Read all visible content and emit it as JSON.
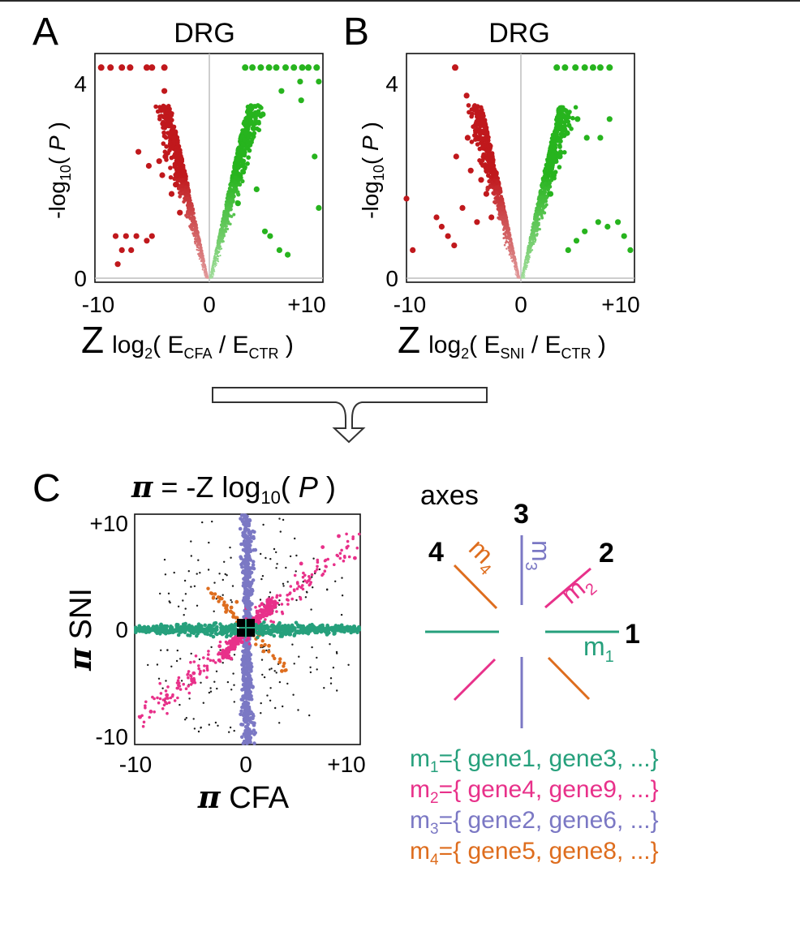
{
  "panels": {
    "a": {
      "letter": "A",
      "title": "DRG",
      "ylabel_pre": "-log",
      "ylabel_sub": "10",
      "ylabel_paren": "( ",
      "ylabel_var": "P",
      "ylabel_close": " )",
      "xlabel_z": "Z",
      "xlabel_log": "log",
      "xlabel_logsub": "2",
      "xlabel_open": "( E",
      "xlabel_num_sub": "CFA",
      "xlabel_slash": " / E",
      "xlabel_den_sub": "CTR",
      "xlabel_close": " )",
      "xticks": [
        "-10",
        "0",
        "+10"
      ],
      "yticks": [
        "0",
        "4"
      ]
    },
    "b": {
      "letter": "B",
      "title": "DRG",
      "ylabel_pre": "-log",
      "ylabel_sub": "10",
      "ylabel_paren": "( ",
      "ylabel_var": "P",
      "ylabel_close": " )",
      "xlabel_z": "Z",
      "xlabel_log": "log",
      "xlabel_logsub": "2",
      "xlabel_open": "( E",
      "xlabel_num_sub": "SNI",
      "xlabel_slash": " / E",
      "xlabel_den_sub": "CTR",
      "xlabel_close": " )",
      "xticks": [
        "-10",
        "0",
        "+10"
      ],
      "yticks": [
        "0",
        "4"
      ]
    },
    "c": {
      "letter": "C",
      "formula_pi": "π",
      "formula_mid": " = -Z log",
      "formula_sub": "10",
      "formula_open": "( ",
      "formula_var": "P",
      "formula_close": " )",
      "ylabel_pi": "π",
      "ylabel_text": " SNI",
      "xlabel_pi": "π",
      "xlabel_text": " CFA",
      "xticks": [
        "-10",
        "0",
        "+10"
      ],
      "yticks": [
        "+10",
        "0",
        "-10"
      ]
    }
  },
  "axes_diagram": {
    "title": "axes",
    "numbers": [
      "1",
      "2",
      "3",
      "4"
    ],
    "module_labels": [
      {
        "m": "m",
        "sub": "1"
      },
      {
        "m": "m",
        "sub": "2"
      },
      {
        "m": "m",
        "sub": "3"
      },
      {
        "m": "m",
        "sub": "4"
      }
    ]
  },
  "legend": [
    {
      "m": "m",
      "sub": "1",
      "text": "={ gene1, gene3, ...}",
      "color": "#26a07c"
    },
    {
      "m": "m",
      "sub": "2",
      "text": "={ gene4, gene9, ...}",
      "color": "#e8318a"
    },
    {
      "m": "m",
      "sub": "3",
      "text": "={ gene2, gene6, ...}",
      "color": "#7b78c4"
    },
    {
      "m": "m",
      "sub": "4",
      "text": "={ gene5, gene8, ...}",
      "color": "#de6d1e"
    }
  ],
  "colors": {
    "down_regulated": "#c0181c",
    "up_regulated": "#27b41e",
    "m1": "#26a07c",
    "m2": "#e8318a",
    "m3": "#7b78c4",
    "m4": "#de6d1e",
    "unassigned": "#1a1a1a",
    "arrow": "#444444"
  },
  "chart_data": [
    {
      "type": "scatter",
      "panel": "A",
      "title": "DRG",
      "xlabel": "Z log2( E_CFA / E_CTR )",
      "ylabel": "-log10( P )",
      "xlim": [
        -11,
        11
      ],
      "ylim": [
        0,
        4.8
      ],
      "xticks": [
        -10,
        0,
        10
      ],
      "yticks": [
        0,
        4
      ],
      "series": [
        {
          "name": "",
          "color": "#c0181c",
          "points": [
            [
              -10.4,
              4.5
            ],
            [
              -9.5,
              4.5
            ],
            [
              -8.4,
              4.5
            ],
            [
              -7.6,
              4.5
            ],
            [
              -6.0,
              4.5
            ],
            [
              -5.5,
              4.5
            ],
            [
              -4.3,
              4.5
            ],
            [
              -4.3,
              4.0
            ],
            [
              -4.5,
              3.6
            ],
            [
              -3.9,
              3.3
            ],
            [
              -3.3,
              3.0
            ],
            [
              -6.8,
              2.7
            ],
            [
              -5.8,
              2.4
            ],
            [
              -4.5,
              2.2
            ],
            [
              -3.2,
              2.0
            ],
            [
              -4.8,
              2.5
            ],
            [
              -5.5,
              0.9
            ],
            [
              -6.0,
              0.8
            ],
            [
              -7.0,
              0.9
            ],
            [
              -8.0,
              0.9
            ],
            [
              -9.0,
              0.9
            ],
            [
              -7.5,
              0.6
            ],
            [
              -8.4,
              0.6
            ],
            [
              -8.8,
              0.3
            ],
            [
              -4.2,
              2.6
            ],
            [
              -3.6,
              1.8
            ],
            [
              -2.8,
              1.4
            ]
          ]
        },
        {
          "name": "",
          "color": "#27b41e",
          "points": [
            [
              3.5,
              4.5
            ],
            [
              4.2,
              4.5
            ],
            [
              5.0,
              4.5
            ],
            [
              5.8,
              4.5
            ],
            [
              6.5,
              4.5
            ],
            [
              7.4,
              4.5
            ],
            [
              8.2,
              4.5
            ],
            [
              9.0,
              4.5
            ],
            [
              9.6,
              4.5
            ],
            [
              10.4,
              4.5
            ],
            [
              8.8,
              4.2
            ],
            [
              8.9,
              3.8
            ],
            [
              10.6,
              4.2
            ],
            [
              7.0,
              4.0
            ],
            [
              5.2,
              3.5
            ],
            [
              4.3,
              3.2
            ],
            [
              3.8,
              2.9
            ],
            [
              3.2,
              2.5
            ],
            [
              10.2,
              2.6
            ],
            [
              10.6,
              1.5
            ],
            [
              5.4,
              1.0
            ],
            [
              5.9,
              0.9
            ],
            [
              6.8,
              0.6
            ],
            [
              7.6,
              0.5
            ],
            [
              3.0,
              2.2
            ],
            [
              4.6,
              1.9
            ],
            [
              2.8,
              1.6
            ]
          ]
        }
      ]
    },
    {
      "type": "scatter",
      "panel": "B",
      "title": "DRG",
      "xlabel": "Z log2( E_SNI / E_CTR )",
      "ylabel": "-log10( P )",
      "xlim": [
        -11,
        11
      ],
      "ylim": [
        0,
        4.8
      ],
      "xticks": [
        -10,
        0,
        10
      ],
      "yticks": [
        0,
        4
      ],
      "series": [
        {
          "name": "",
          "color": "#c0181c",
          "points": [
            [
              -6.3,
              4.5
            ],
            [
              -5.2,
              3.9
            ],
            [
              -4.4,
              3.6
            ],
            [
              -4.1,
              3.3
            ],
            [
              -5.1,
              3.0
            ],
            [
              -6.2,
              2.6
            ],
            [
              -4.8,
              2.3
            ],
            [
              -3.8,
              2.1
            ],
            [
              -11.0,
              1.7
            ],
            [
              -10.4,
              0.6
            ],
            [
              -8.1,
              1.3
            ],
            [
              -7.6,
              1.1
            ],
            [
              -7.0,
              0.9
            ],
            [
              -6.4,
              0.7
            ],
            [
              -3.3,
              1.8
            ],
            [
              -2.8,
              1.3
            ],
            [
              -5.6,
              1.5
            ],
            [
              -4.2,
              1.2
            ]
          ]
        },
        {
          "name": "",
          "color": "#27b41e",
          "points": [
            [
              3.5,
              4.5
            ],
            [
              4.3,
              4.5
            ],
            [
              5.3,
              4.5
            ],
            [
              6.2,
              4.5
            ],
            [
              7.0,
              4.5
            ],
            [
              7.7,
              4.5
            ],
            [
              8.6,
              4.5
            ],
            [
              4.1,
              3.6
            ],
            [
              5.5,
              3.4
            ],
            [
              4.5,
              3.1
            ],
            [
              6.4,
              3.0
            ],
            [
              8.6,
              3.4
            ],
            [
              7.7,
              3.0
            ],
            [
              3.8,
              2.6
            ],
            [
              3.2,
              2.2
            ],
            [
              2.9,
              1.8
            ],
            [
              7.5,
              1.2
            ],
            [
              8.4,
              1.1
            ],
            [
              9.4,
              1.2
            ],
            [
              10.0,
              0.9
            ],
            [
              10.6,
              0.6
            ],
            [
              6.2,
              1.0
            ],
            [
              5.4,
              0.8
            ],
            [
              4.6,
              0.6
            ]
          ]
        }
      ]
    },
    {
      "type": "scatter",
      "panel": "C",
      "title": "π = -Z log10( P )",
      "xlabel": "π CFA",
      "ylabel": "π SNI",
      "xlim": [
        -10.5,
        10.5
      ],
      "ylim": [
        -10.5,
        10.5
      ],
      "xticks": [
        -10,
        0,
        10
      ],
      "yticks": [
        10,
        0,
        -10
      ],
      "series": [
        {
          "name": "m1",
          "color": "#26a07c",
          "points": [
            [
              -10,
              0.2
            ],
            [
              -8,
              -0.1
            ],
            [
              -6,
              0.1
            ],
            [
              -4,
              0
            ],
            [
              -2,
              0.1
            ],
            [
              2,
              -0.1
            ],
            [
              4,
              0
            ],
            [
              6,
              0.2
            ],
            [
              8,
              -0.1
            ],
            [
              10,
              0
            ]
          ]
        },
        {
          "name": "m2",
          "color": "#e8318a",
          "points": [
            [
              5,
              6
            ],
            [
              7,
              7.5
            ],
            [
              8.5,
              8.5
            ],
            [
              10,
              6.5
            ],
            [
              2,
              2.5
            ],
            [
              -2,
              -2.5
            ],
            [
              -5,
              -4
            ],
            [
              -7.5,
              -6
            ],
            [
              -9,
              -7.5
            ],
            [
              -10,
              -8
            ]
          ]
        },
        {
          "name": "m3",
          "color": "#7b78c4",
          "points": [
            [
              0,
              10
            ],
            [
              0.2,
              8
            ],
            [
              -0.1,
              6
            ],
            [
              0,
              4
            ],
            [
              0,
              2
            ],
            [
              0,
              -2
            ],
            [
              0.1,
              -4
            ],
            [
              -0.2,
              -6
            ],
            [
              0,
              -8
            ],
            [
              0,
              -10
            ]
          ]
        },
        {
          "name": "m4",
          "color": "#de6d1e",
          "points": [
            [
              -1.5,
              2
            ],
            [
              -2,
              1.6
            ],
            [
              -1,
              2.5
            ],
            [
              1.5,
              -2
            ],
            [
              2,
              -1.5
            ],
            [
              3,
              -3
            ],
            [
              3.2,
              -3.8
            ],
            [
              -2.5,
              2.8
            ]
          ]
        }
      ]
    }
  ]
}
